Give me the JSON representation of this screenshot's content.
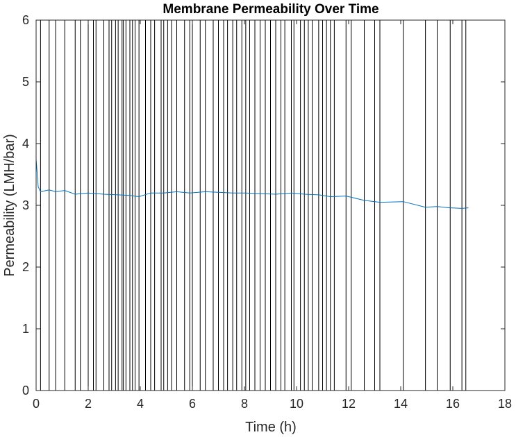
{
  "chart_data": {
    "type": "line",
    "title": "Membrane Permeability Over Time",
    "xlabel": "Time (h)",
    "ylabel": "Permeability (LMH/bar)",
    "xlim": [
      0,
      18
    ],
    "ylim": [
      0,
      6
    ],
    "xticks": [
      "0",
      "2",
      "4",
      "6",
      "8",
      "10",
      "12",
      "14",
      "16",
      "18"
    ],
    "yticks": [
      "0",
      "1",
      "2",
      "3",
      "4",
      "5",
      "6"
    ],
    "grid": false,
    "legend": "none",
    "series_color": "#0072BD",
    "event_line_color": "#000000",
    "event_lines_x": [
      0.17,
      0.5,
      0.75,
      1.1,
      1.5,
      1.7,
      2.0,
      2.2,
      2.3,
      2.6,
      2.8,
      2.9,
      3.05,
      3.15,
      3.3,
      3.35,
      3.45,
      3.6,
      3.7,
      3.8,
      3.95,
      4.2,
      4.4,
      4.55,
      4.8,
      4.9,
      5.05,
      5.2,
      5.4,
      5.7,
      5.9,
      6.0,
      6.3,
      6.5,
      6.8,
      7.0,
      7.2,
      7.35,
      7.55,
      7.7,
      7.9,
      8.05,
      8.2,
      8.4,
      8.6,
      8.8,
      9.0,
      9.2,
      9.4,
      9.55,
      9.8,
      9.9,
      10.15,
      10.3,
      10.45,
      10.6,
      10.85,
      11.0,
      11.15,
      11.3,
      11.45,
      11.9,
      12.1,
      12.6,
      13.0,
      13.2,
      14.1,
      14.95,
      15.4,
      15.9,
      16.35,
      16.5
    ],
    "series": [
      {
        "x": [
          0.0,
          0.08,
          0.17,
          0.5,
          0.75,
          1.1,
          1.5,
          2.0,
          2.6,
          3.15,
          3.6,
          3.95,
          4.4,
          4.9,
          5.4,
          5.9,
          6.5,
          7.0,
          7.55,
          8.05,
          8.6,
          9.2,
          9.8,
          10.3,
          10.85,
          11.3,
          11.9,
          12.6,
          13.2,
          14.1,
          14.95,
          15.4,
          15.9,
          16.35,
          16.6
        ],
        "y": [
          3.75,
          3.3,
          3.22,
          3.25,
          3.22,
          3.24,
          3.18,
          3.2,
          3.18,
          3.17,
          3.16,
          3.14,
          3.2,
          3.2,
          3.22,
          3.2,
          3.22,
          3.21,
          3.2,
          3.2,
          3.19,
          3.18,
          3.2,
          3.18,
          3.17,
          3.14,
          3.15,
          3.08,
          3.05,
          3.06,
          2.97,
          2.98,
          2.96,
          2.95,
          2.96
        ]
      }
    ]
  }
}
